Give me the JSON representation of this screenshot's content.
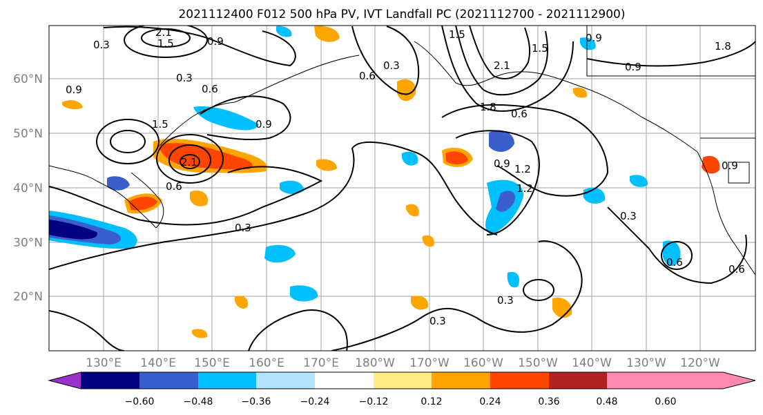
{
  "title": "2021112400 F012 500 hPa PV, IVT Landfall PC (2021112700 - 2021112900)",
  "map": {
    "lat_labels": [
      "60°N",
      "50°N",
      "40°N",
      "30°N",
      "20°N"
    ],
    "lon_labels": [
      "130°E",
      "140°E",
      "150°E",
      "160°E",
      "170°E",
      "180°W",
      "170°W",
      "160°W",
      "150°W",
      "140°W",
      "130°W",
      "120°W"
    ],
    "contour_labels": [
      "0.3",
      "0.9",
      "0.6",
      "1.5",
      "2.1",
      "0.9",
      "1.5",
      "2.1",
      "0.9",
      "0.6",
      "1.2",
      "1.8",
      "0.6",
      "0.9",
      "0.3",
      "0.9",
      "1.2",
      "0.6",
      "0.3",
      "0.3",
      "0.6",
      "0.6",
      "0.3",
      "0.9",
      "1.5",
      "1.5",
      "0.9",
      "0.3",
      "0.3",
      "2.1",
      "1.8"
    ],
    "colors": {
      "land_border": "#000000",
      "gridline": "#a0a0a0",
      "positive_fill": [
        "#ffeb84",
        "#ffa500",
        "#ff4500",
        "#b22222",
        "#ff88b0"
      ],
      "negative_fill": [
        "#b4e4fd",
        "#00bfff",
        "#3a5fcd",
        "#000080",
        "#9932cc"
      ]
    }
  },
  "colorbar": {
    "tick_labels": [
      "−0.60",
      "−0.48",
      "−0.36",
      "−0.24",
      "−0.12",
      "0.12",
      "0.24",
      "0.36",
      "0.48",
      "0.60"
    ],
    "colors": [
      "#9932cc",
      "#000080",
      "#3a5fcd",
      "#00bfff",
      "#b4e4fd",
      "#ffffff",
      "#ffeb84",
      "#ffa500",
      "#ff4500",
      "#b22222",
      "#ff88b0"
    ]
  }
}
